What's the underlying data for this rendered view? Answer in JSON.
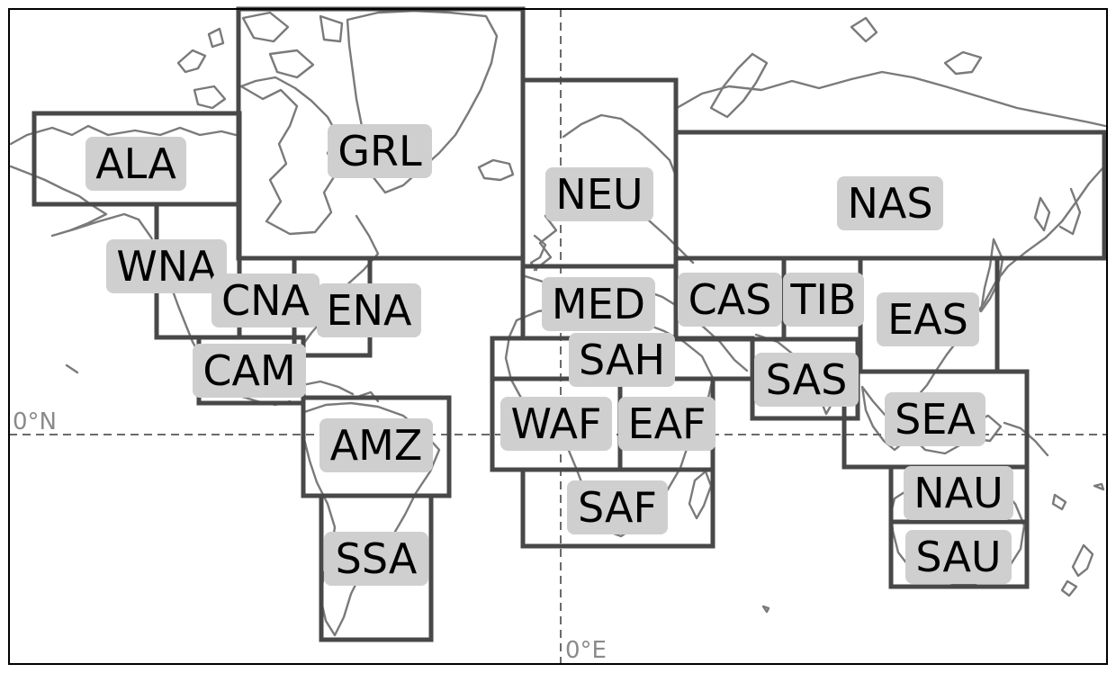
{
  "map": {
    "gridlines": {
      "latitude_label": "0°N",
      "longitude_label": "0°E"
    },
    "regions": [
      {
        "id": "ALA",
        "label": "ALA"
      },
      {
        "id": "GRL",
        "label": "GRL"
      },
      {
        "id": "NEU",
        "label": "NEU"
      },
      {
        "id": "NAS",
        "label": "NAS"
      },
      {
        "id": "WNA",
        "label": "WNA"
      },
      {
        "id": "CNA",
        "label": "CNA"
      },
      {
        "id": "ENA",
        "label": "ENA"
      },
      {
        "id": "MED",
        "label": "MED"
      },
      {
        "id": "CAS",
        "label": "CAS"
      },
      {
        "id": "TIB",
        "label": "TIB"
      },
      {
        "id": "EAS",
        "label": "EAS"
      },
      {
        "id": "CAM",
        "label": "CAM"
      },
      {
        "id": "SAH",
        "label": "SAH"
      },
      {
        "id": "SAS",
        "label": "SAS"
      },
      {
        "id": "WAF",
        "label": "WAF"
      },
      {
        "id": "EAF",
        "label": "EAF"
      },
      {
        "id": "SEA",
        "label": "SEA"
      },
      {
        "id": "AMZ",
        "label": "AMZ"
      },
      {
        "id": "NAU",
        "label": "NAU"
      },
      {
        "id": "SAF",
        "label": "SAF"
      },
      {
        "id": "SSA",
        "label": "SSA"
      },
      {
        "id": "SAU",
        "label": "SAU"
      }
    ]
  }
}
